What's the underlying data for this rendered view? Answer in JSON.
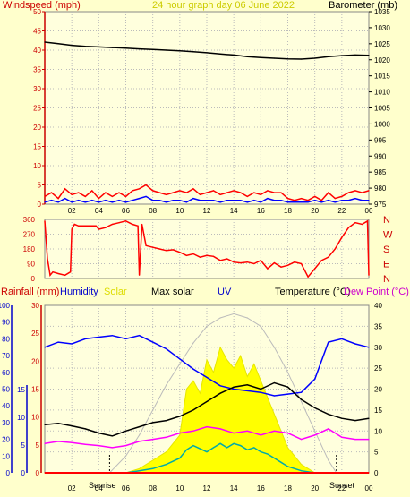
{
  "header": {
    "windspeed_label": "Windspeed (mph)",
    "graph_title": "24 hour graph day   06 June 2022",
    "barometer_label": "Barometer (mb)"
  },
  "bottom_legend": {
    "rainfall": "Rainfall (mm)",
    "humidity": "Humidity",
    "solar": "Solar",
    "max_solar": "Max solar",
    "uv": "UV",
    "temperature": "Temperature (°C)",
    "dew_point": "Dew Point (°C)"
  },
  "sun_labels": {
    "sunrise": "Sunrise",
    "sunset": "Sunset"
  },
  "colors": {
    "background": "#ffffcc",
    "panel": "#ffffdd",
    "wind_avg": "#0000ff",
    "wind_gust": "#ff0000",
    "barometer": "#000000",
    "direction": "#ff0000",
    "humidity": "#0000ff",
    "solar": "#ffff00",
    "max_solar": "#bbbbbb",
    "uv": "#00aaaa",
    "temperature": "#000000",
    "dew_point": "#ff00ff",
    "rainfall": "#ff0000"
  },
  "chart_data": [
    {
      "type": "line",
      "name": "wind-barometer",
      "x_ticks": [
        "02",
        "04",
        "06",
        "08",
        "10",
        "12",
        "14",
        "16",
        "18",
        "20",
        "22",
        "00"
      ],
      "wind_ticks": [
        "0",
        "5",
        "10",
        "15",
        "20",
        "25",
        "30",
        "35",
        "40",
        "45",
        "50"
      ],
      "baro_ticks": [
        "975",
        "980",
        "985",
        "990",
        "995",
        "1000",
        "1005",
        "1010",
        "1015",
        "1020",
        "1025",
        "1030",
        "1035"
      ],
      "xlim": [
        0,
        24
      ],
      "wind_ylim": [
        0,
        50
      ],
      "baro_ylim": [
        975,
        1035
      ],
      "series": [
        {
          "key": "barometer",
          "x": [
            0,
            1,
            2,
            3,
            4,
            5,
            6,
            7,
            8,
            9,
            10,
            11,
            12,
            13,
            14,
            15,
            16,
            17,
            18,
            19,
            20,
            21,
            22,
            23,
            24
          ],
          "values": [
            1025.5,
            1025,
            1024.5,
            1024.2,
            1024,
            1023.8,
            1023.6,
            1023.4,
            1023.2,
            1023,
            1022.8,
            1022.5,
            1022.2,
            1021.8,
            1021.5,
            1021,
            1020.7,
            1020.5,
            1020.3,
            1020.2,
            1020.5,
            1021,
            1021.3,
            1021.5,
            1021.4
          ]
        },
        {
          "key": "wind_gust",
          "x": [
            0,
            0.5,
            1,
            1.5,
            2,
            2.5,
            3,
            3.5,
            4,
            4.5,
            5,
            5.5,
            6,
            6.5,
            7,
            7.5,
            8,
            8.5,
            9,
            9.5,
            10,
            10.5,
            11,
            11.5,
            12,
            12.5,
            13,
            13.5,
            14,
            14.5,
            15,
            15.5,
            16,
            16.5,
            17,
            17.5,
            18,
            18.5,
            19,
            19.5,
            20,
            20.5,
            21,
            21.5,
            22,
            22.5,
            23,
            23.5,
            24
          ],
          "values": [
            2,
            3,
            1.5,
            4,
            2.5,
            3,
            2,
            3.5,
            1.5,
            3,
            2,
            3,
            2,
            3.5,
            4,
            5,
            3.5,
            3,
            2.5,
            3,
            3.5,
            3,
            4,
            2.5,
            3,
            3.5,
            2.5,
            3,
            3.5,
            3,
            2,
            3,
            2.5,
            3.5,
            3,
            3,
            1.5,
            1,
            1.5,
            1,
            2,
            1,
            3,
            1.5,
            2,
            3,
            3.5,
            3,
            3.5
          ]
        },
        {
          "key": "wind_avg",
          "x": [
            0,
            0.5,
            1,
            1.5,
            2,
            2.5,
            3,
            3.5,
            4,
            4.5,
            5,
            5.5,
            6,
            6.5,
            7,
            7.5,
            8,
            8.5,
            9,
            9.5,
            10,
            10.5,
            11,
            11.5,
            12,
            12.5,
            13,
            13.5,
            14,
            14.5,
            15,
            15.5,
            16,
            16.5,
            17,
            17.5,
            18,
            18.5,
            19,
            19.5,
            20,
            20.5,
            21,
            21.5,
            22,
            22.5,
            23,
            23.5,
            24
          ],
          "values": [
            0.5,
            1,
            0.5,
            1.5,
            0.5,
            1,
            0.5,
            1,
            0.5,
            1,
            0.5,
            1,
            0.5,
            1,
            1.5,
            2,
            1,
            1,
            0.5,
            1,
            1,
            0.5,
            1.5,
            1,
            1,
            1,
            0.5,
            1,
            1,
            1,
            0.5,
            1,
            0.5,
            1.5,
            1,
            1,
            0.5,
            0.5,
            0.5,
            0.5,
            1,
            0.5,
            1,
            0.5,
            1,
            1,
            1.5,
            1,
            1
          ]
        }
      ]
    },
    {
      "type": "line",
      "name": "wind-direction",
      "x_ticks": [
        "02",
        "04",
        "06",
        "08",
        "10",
        "12",
        "14",
        "16",
        "18",
        "20",
        "22",
        "00"
      ],
      "deg_ticks": [
        "0",
        "90",
        "180",
        "270",
        "360"
      ],
      "compass_ticks": [
        "N",
        "W",
        "S",
        "E",
        "N"
      ],
      "xlim": [
        0,
        24
      ],
      "ylim": [
        0,
        360
      ],
      "series": [
        {
          "key": "direction",
          "x": [
            0,
            0.2,
            0.4,
            0.6,
            1,
            1.5,
            1.9,
            2,
            2.2,
            2.5,
            3,
            3.5,
            3.8,
            4,
            4.5,
            5,
            5.5,
            6,
            6.5,
            6.9,
            7,
            7.2,
            7.5,
            8,
            8.5,
            9,
            9.5,
            10,
            10.5,
            11,
            11.5,
            12,
            12.5,
            13,
            13.5,
            14,
            14.5,
            15,
            15.5,
            16,
            16.5,
            17,
            17.5,
            18,
            18.5,
            19,
            19.5,
            20,
            20.5,
            21,
            21.5,
            22,
            22.5,
            23,
            23.5,
            23.9,
            24
          ],
          "values": [
            350,
            120,
            20,
            40,
            30,
            20,
            40,
            300,
            330,
            320,
            320,
            320,
            320,
            300,
            310,
            330,
            340,
            350,
            330,
            320,
            20,
            330,
            200,
            190,
            180,
            170,
            175,
            160,
            140,
            150,
            130,
            140,
            135,
            110,
            120,
            100,
            95,
            100,
            90,
            110,
            60,
            95,
            70,
            80,
            100,
            90,
            10,
            60,
            110,
            130,
            180,
            250,
            310,
            340,
            330,
            350,
            20
          ]
        }
      ]
    },
    {
      "type": "line",
      "name": "weather",
      "x_ticks": [
        "02",
        "04",
        "06",
        "08",
        "10",
        "12",
        "14",
        "16",
        "18",
        "20",
        "22",
        "00"
      ],
      "humidity_ticks": [
        "0",
        "10",
        "20",
        "30",
        "40",
        "50",
        "60",
        "70",
        "80",
        "90",
        "100"
      ],
      "rain_ticks": [
        "0",
        "5",
        "10",
        "15",
        "20",
        "25",
        "30"
      ],
      "uv_ticks": [
        "0",
        "5",
        "10",
        "15"
      ],
      "temp_ticks": [
        "0",
        "5",
        "10",
        "15",
        "20",
        "25",
        "30",
        "35",
        "40"
      ],
      "xlim": [
        0,
        24
      ],
      "humidity_ylim": [
        0,
        100
      ],
      "temp_ylim": [
        0,
        40
      ],
      "sunrise": 4.8,
      "sunset": 21.6,
      "series": [
        {
          "key": "humidity",
          "x": [
            0,
            1,
            2,
            3,
            4,
            5,
            6,
            7,
            8,
            9,
            10,
            11,
            12,
            13,
            14,
            15,
            16,
            17,
            18,
            19,
            20,
            21,
            22,
            23,
            24
          ],
          "values": [
            75,
            78,
            77,
            80,
            81,
            82,
            80,
            82,
            78,
            74,
            68,
            62,
            57,
            52,
            50,
            49,
            48,
            46,
            47,
            48,
            56,
            78,
            80,
            77,
            75
          ]
        },
        {
          "key": "temperature",
          "x": [
            0,
            1,
            2,
            3,
            4,
            5,
            6,
            7,
            8,
            9,
            10,
            11,
            12,
            13,
            14,
            15,
            16,
            17,
            18,
            19,
            20,
            21,
            22,
            23,
            24
          ],
          "values": [
            11.5,
            11.8,
            11.2,
            10.5,
            9.5,
            8.8,
            10,
            11,
            12,
            12.5,
            13.5,
            15,
            17,
            19,
            20.5,
            21,
            20,
            21.5,
            20.5,
            17.5,
            15.5,
            14,
            13,
            12.5,
            13
          ]
        },
        {
          "key": "dew_point",
          "x": [
            0,
            1,
            2,
            3,
            4,
            5,
            6,
            7,
            8,
            9,
            10,
            11,
            12,
            13,
            14,
            15,
            16,
            17,
            18,
            19,
            20,
            21,
            22,
            23,
            24
          ],
          "values": [
            7,
            7.5,
            7.2,
            6.8,
            6.5,
            6,
            6.5,
            7.5,
            8,
            8.5,
            9.5,
            10,
            11,
            10.5,
            9.5,
            10,
            9,
            10,
            9.5,
            8,
            9,
            10.5,
            8.5,
            8,
            8
          ]
        },
        {
          "key": "max_solar",
          "x": [
            4.8,
            6,
            7,
            8,
            9,
            10,
            11,
            12,
            13,
            14,
            15,
            16,
            17,
            18,
            19,
            20,
            21,
            21.6
          ],
          "values": [
            0,
            4,
            9,
            15,
            21,
            26,
            31,
            35,
            37,
            38,
            37,
            35,
            30,
            24,
            17,
            10,
            3,
            0
          ]
        },
        {
          "key": "solar",
          "x": [
            6,
            7,
            8,
            9,
            10,
            10.5,
            11,
            11.5,
            12,
            12.5,
            13,
            13.5,
            14,
            14.5,
            15,
            15.5,
            16,
            16.5,
            17,
            17.5,
            18,
            19,
            20
          ],
          "values": [
            0,
            1,
            3,
            5,
            9,
            20,
            22,
            19,
            27,
            24,
            30,
            27,
            25,
            28,
            23,
            26,
            22,
            18,
            14,
            10,
            6,
            2,
            0
          ]
        },
        {
          "key": "uv",
          "x": [
            6,
            7,
            8,
            9,
            10,
            10.5,
            11,
            12,
            12.5,
            13,
            13.5,
            14,
            14.5,
            15,
            15.5,
            16,
            16.5,
            17,
            17.5,
            18,
            19,
            20
          ],
          "values": [
            0,
            0.5,
            1,
            2,
            3.5,
            5.5,
            6.5,
            5,
            6,
            7,
            6,
            7,
            6.5,
            5.5,
            6,
            5,
            4.5,
            3.5,
            2.5,
            1.5,
            0.5,
            0
          ]
        },
        {
          "key": "rainfall",
          "x": [
            0,
            24
          ],
          "values": [
            0,
            0
          ]
        }
      ]
    }
  ]
}
